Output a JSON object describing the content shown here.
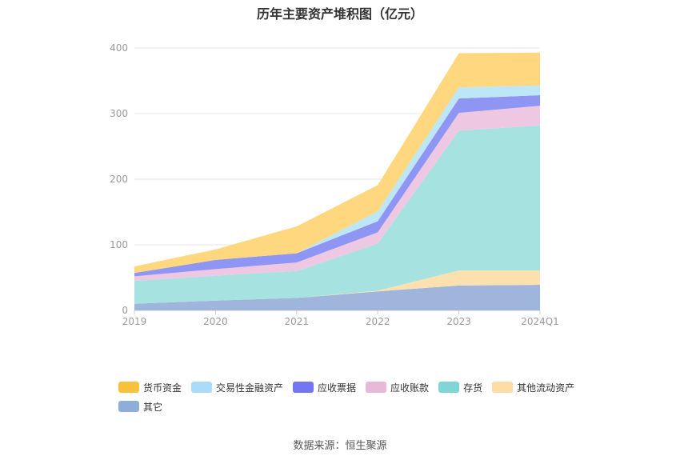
{
  "chart_data": {
    "type": "area",
    "stacked": true,
    "title": "历年主要资产堆积图（亿元）",
    "x": [
      "2019",
      "2020",
      "2021",
      "2022",
      "2023",
      "2024Q1"
    ],
    "ylim": [
      0,
      400
    ],
    "yticks": [
      0,
      100,
      200,
      300,
      400
    ],
    "grid": true,
    "legend_position": "bottom",
    "series": [
      {
        "name": "其它",
        "color": "#9fb5dc",
        "values": [
          10,
          15,
          19,
          29,
          38,
          39
        ]
      },
      {
        "name": "其他流动资产",
        "color": "#fde0b0",
        "values": [
          0,
          0,
          0,
          1,
          23,
          22
        ]
      },
      {
        "name": "存货",
        "color": "#a6e2e0",
        "values": [
          35,
          38,
          41,
          72,
          213,
          221
        ]
      },
      {
        "name": "应收账款",
        "color": "#eec8e2",
        "values": [
          7,
          10,
          13,
          17,
          27,
          30
        ]
      },
      {
        "name": "应收票据",
        "color": "#8f95f2",
        "values": [
          5,
          14,
          14,
          17,
          22,
          16
        ]
      },
      {
        "name": "交易性金融资产",
        "color": "#bde6f7",
        "values": [
          0,
          0,
          0,
          15,
          17,
          15
        ]
      },
      {
        "name": "货币资金",
        "color": "#fed77f",
        "values": [
          10,
          16,
          41,
          40,
          52,
          50
        ]
      }
    ],
    "legend_order": [
      "货币资金",
      "交易性金融资产",
      "应收票据",
      "应收账款",
      "存货",
      "其他流动资产",
      "其它"
    ],
    "legend_colors": {
      "货币资金": "#f9c23c",
      "交易性金融资产": "#a9dcf8",
      "应收票据": "#7376f0",
      "应收账款": "#e7b9d9",
      "存货": "#7fd6d4",
      "其他流动资产": "#fddca6",
      "其它": "#8eadd8"
    }
  },
  "source": "数据来源：恒生聚源"
}
